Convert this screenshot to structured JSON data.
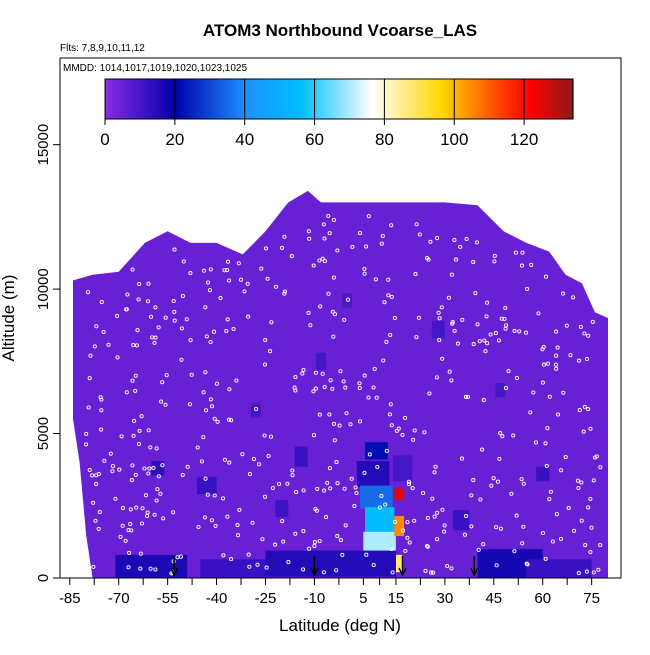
{
  "chart_data": {
    "type": "heatmap",
    "title": "ATOM3 Northbound Vcoarse_LAS",
    "subtitle_flights": "Flts: 7,8,9,10,11,12",
    "subtitle_dates": "MMDD: 1014,1017,1019,1020,1023,1025",
    "xlabel": "Latitude (deg N)",
    "ylabel": "Altitude (m)",
    "xlim": [
      -88,
      84
    ],
    "ylim": [
      0,
      18000
    ],
    "x_ticks": [
      -85,
      -70,
      -55,
      -40,
      -25,
      -10,
      5,
      15,
      30,
      45,
      60,
      75
    ],
    "x_tick_labels": [
      "-85",
      "-70",
      "-55",
      "-40",
      "-25",
      "-10",
      "5",
      "15",
      "30",
      "45",
      "60",
      "75"
    ],
    "y_ticks": [
      0,
      5000,
      10000,
      15000
    ],
    "y_tick_labels": [
      "0",
      "5000",
      "10000",
      "15000"
    ],
    "colorbar": {
      "min": 0,
      "max": 134,
      "ticks": [
        0,
        20,
        40,
        60,
        80,
        100,
        120
      ],
      "tick_labels": [
        "0",
        "20",
        "40",
        "60",
        "80",
        "100",
        "120"
      ],
      "colors": [
        "#8a2be2",
        "#0000aa",
        "#1e90ff",
        "#00bfff",
        "#ffffff",
        "#ffd700",
        "#ff4500",
        "#ff0000",
        "#8b1a1a"
      ]
    },
    "background_value": 5,
    "envelope_top": [
      {
        "lat": -84,
        "alt": 10300
      },
      {
        "lat": -78,
        "alt": 10500
      },
      {
        "lat": -70,
        "alt": 10600
      },
      {
        "lat": -62,
        "alt": 11600
      },
      {
        "lat": -55,
        "alt": 12000
      },
      {
        "lat": -48,
        "alt": 11600
      },
      {
        "lat": -40,
        "alt": 11600
      },
      {
        "lat": -32,
        "alt": 11200
      },
      {
        "lat": -25,
        "alt": 12000
      },
      {
        "lat": -18,
        "alt": 13000
      },
      {
        "lat": -12,
        "alt": 13400
      },
      {
        "lat": -8,
        "alt": 13000
      },
      {
        "lat": 5,
        "alt": 13000
      },
      {
        "lat": 20,
        "alt": 13000
      },
      {
        "lat": 30,
        "alt": 13000
      },
      {
        "lat": 40,
        "alt": 12900
      },
      {
        "lat": 48,
        "alt": 12000
      },
      {
        "lat": 55,
        "alt": 11600
      },
      {
        "lat": 62,
        "alt": 11300
      },
      {
        "lat": 67,
        "alt": 10500
      },
      {
        "lat": 72,
        "alt": 10200
      },
      {
        "lat": 76,
        "alt": 9200
      },
      {
        "lat": 80,
        "alt": 9000
      }
    ],
    "envelope_bottom_left": [
      {
        "lat": -84,
        "alt": 10300
      },
      {
        "lat": -84,
        "alt": 5500
      },
      {
        "lat": -82,
        "alt": 4000
      },
      {
        "lat": -80,
        "alt": 1500
      },
      {
        "lat": -78,
        "alt": 0
      }
    ],
    "cells": [
      {
        "lat": 9,
        "alt": 4400,
        "w": 7,
        "h": 600,
        "value": 22
      },
      {
        "lat": 8,
        "alt": 3600,
        "w": 10,
        "h": 900,
        "value": 15
      },
      {
        "lat": 9,
        "alt": 2800,
        "w": 10,
        "h": 800,
        "value": 35
      },
      {
        "lat": 10,
        "alt": 2000,
        "w": 9,
        "h": 900,
        "value": 55
      },
      {
        "lat": 10,
        "alt": 1200,
        "w": 10,
        "h": 800,
        "value": 70
      },
      {
        "lat": 10,
        "alt": 500,
        "w": 10,
        "h": 700,
        "value": 60
      },
      {
        "lat": 16,
        "alt": 1800,
        "w": 3,
        "h": 700,
        "value": 105
      },
      {
        "lat": 16,
        "alt": 2900,
        "w": 3,
        "h": 400,
        "value": 125
      },
      {
        "lat": 15,
        "alt": 500,
        "w": 4,
        "h": 600,
        "value": 88
      },
      {
        "lat": 17,
        "alt": 3800,
        "w": 6,
        "h": 900,
        "value": 10
      },
      {
        "lat": -5,
        "alt": 500,
        "w": 40,
        "h": 900,
        "value": 15
      },
      {
        "lat": -60,
        "alt": 400,
        "w": 22,
        "h": 800,
        "value": 16
      },
      {
        "lat": -35,
        "alt": 300,
        "w": 20,
        "h": 700,
        "value": 12
      },
      {
        "lat": 50,
        "alt": 500,
        "w": 20,
        "h": 1000,
        "value": 17
      },
      {
        "lat": 65,
        "alt": 300,
        "w": 20,
        "h": 700,
        "value": 12
      },
      {
        "lat": -58,
        "alt": 3800,
        "w": 4,
        "h": 500,
        "value": 14
      },
      {
        "lat": -43,
        "alt": 3200,
        "w": 6,
        "h": 600,
        "value": 12
      },
      {
        "lat": -14,
        "alt": 4200,
        "w": 4,
        "h": 700,
        "value": 12
      },
      {
        "lat": -28,
        "alt": 5800,
        "w": 3,
        "h": 500,
        "value": 10
      },
      {
        "lat": -8,
        "alt": 7500,
        "w": 3,
        "h": 600,
        "value": 10
      },
      {
        "lat": 28,
        "alt": 8600,
        "w": 4,
        "h": 600,
        "value": 10
      },
      {
        "lat": 0,
        "alt": 9600,
        "w": 3,
        "h": 500,
        "value": 9
      },
      {
        "lat": 47,
        "alt": 6500,
        "w": 3,
        "h": 500,
        "value": 10
      },
      {
        "lat": 60,
        "alt": 3600,
        "w": 4,
        "h": 500,
        "value": 12
      },
      {
        "lat": -20,
        "alt": 2400,
        "w": 4,
        "h": 600,
        "value": 11
      },
      {
        "lat": 35,
        "alt": 2000,
        "w": 5,
        "h": 700,
        "value": 12
      }
    ],
    "arrows_lat": [
      -53,
      -10,
      17,
      39
    ]
  }
}
